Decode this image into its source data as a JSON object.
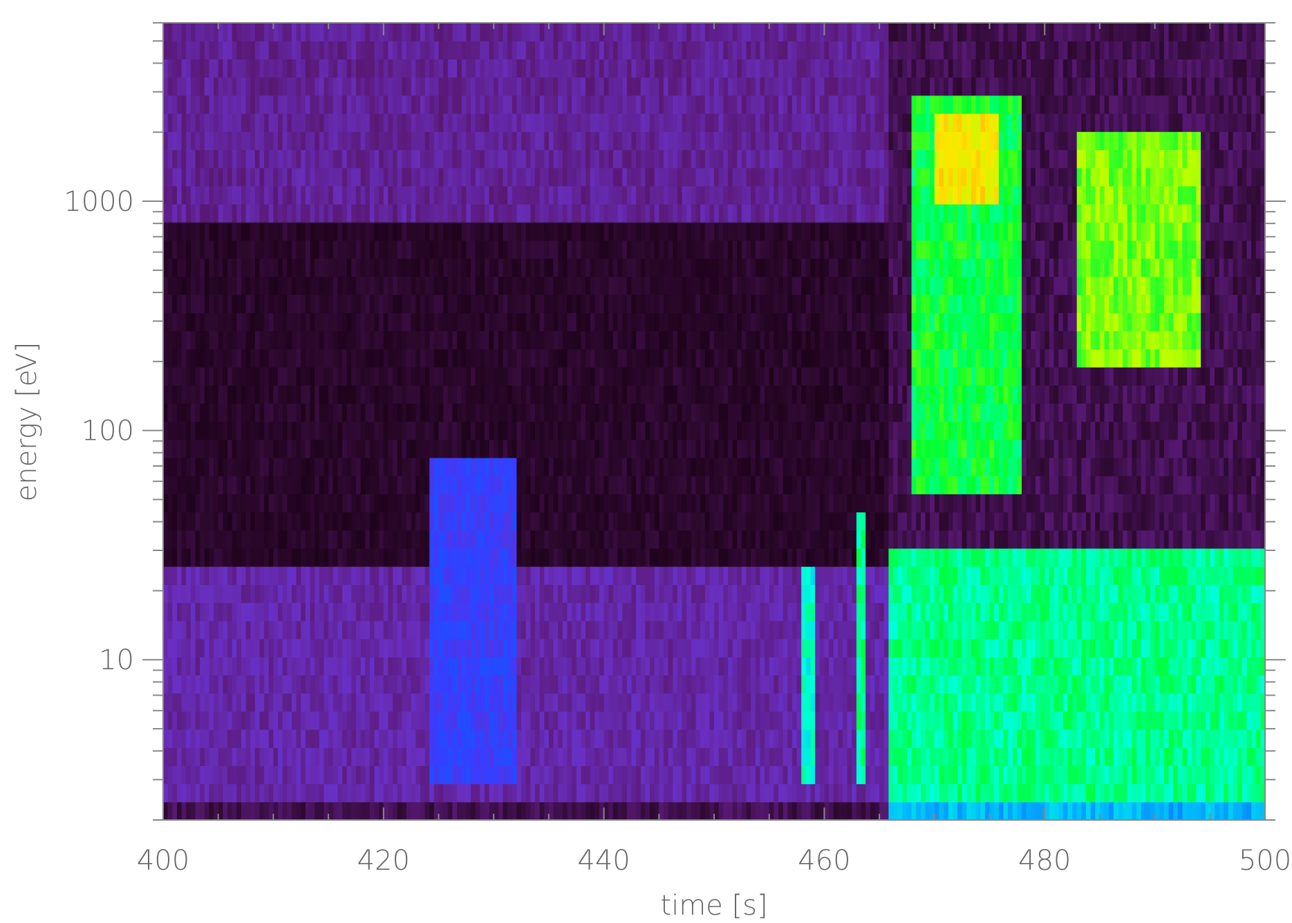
{
  "chart_data": {
    "type": "heatmap",
    "title": "",
    "xlabel": "time  [s]",
    "ylabel": "energy  [eV]",
    "xlim": [
      400,
      500
    ],
    "ylim": [
      2,
      6000
    ],
    "y_scale": "log",
    "x_ticks": [
      400,
      420,
      440,
      460,
      480,
      500
    ],
    "x_tick_labels": [
      "400",
      "420",
      "440",
      "460",
      "480",
      "500"
    ],
    "y_ticks": [
      10,
      100,
      1000
    ],
    "y_tick_labels": [
      "10",
      "100",
      "1000"
    ],
    "colormap": [
      "#1a0015",
      "#2e0930",
      "#5a1a78",
      "#6a2fc0",
      "#3a3cff",
      "#0a5cff",
      "#00b8ff",
      "#00ffd8",
      "#00ff30",
      "#b8ff00",
      "#ffe600",
      "#ff7a00",
      "#ff2000"
    ],
    "intensity_scale": [
      0,
      1
    ],
    "regions": [
      {
        "t0": 400,
        "t1": 466,
        "e0": 25,
        "e1": 800,
        "level": 0.06
      },
      {
        "t0": 400,
        "t1": 466,
        "e0": 800,
        "e1": 6000,
        "level": 0.2
      },
      {
        "t0": 400,
        "t1": 466,
        "e0": 2.2,
        "e1": 25,
        "level": 0.22
      },
      {
        "t0": 424,
        "t1": 432,
        "e0": 3,
        "e1": 70,
        "level": 0.34
      },
      {
        "t0": 458,
        "t1": 459,
        "e0": 3,
        "e1": 25,
        "level": 0.58
      },
      {
        "t0": 463,
        "t1": 463.6,
        "e0": 3,
        "e1": 45,
        "level": 0.62
      },
      {
        "t0": 466,
        "t1": 500,
        "e0": 2.4,
        "e1": 30,
        "level": 0.62
      },
      {
        "t0": 468,
        "t1": 478,
        "e0": 50,
        "e1": 3000,
        "level": 0.66
      },
      {
        "t0": 470,
        "t1": 476,
        "e0": 900,
        "e1": 2400,
        "level": 0.82
      },
      {
        "t0": 483,
        "t1": 494,
        "e0": 200,
        "e1": 2000,
        "level": 0.72
      },
      {
        "t0": 466,
        "t1": 500,
        "e0": 2,
        "e1": 2.4,
        "level": 0.5
      }
    ]
  }
}
